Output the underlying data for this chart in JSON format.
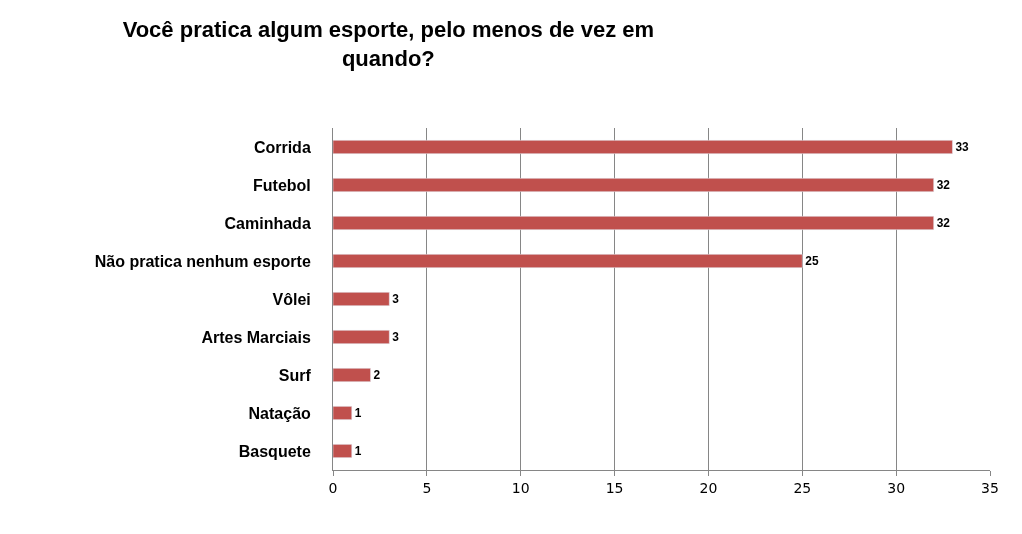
{
  "chart_data": {
    "type": "bar",
    "orientation": "horizontal",
    "title": "Você pratica algum esporte, pelo menos de vez em quando?",
    "categories": [
      "Corrida",
      "Futebol",
      "Caminhada",
      "Não pratica nenhum esporte",
      "Vôlei",
      "Artes Marciais",
      "Surf",
      "Natação",
      "Basquete"
    ],
    "values": [
      33,
      32,
      32,
      25,
      3,
      3,
      2,
      1,
      1
    ],
    "color": "#c0504d",
    "xlim": [
      0,
      35
    ],
    "xticks": [
      0,
      5,
      10,
      15,
      20,
      25,
      30,
      35
    ],
    "grid": "x",
    "data_labels": true,
    "legend": false
  }
}
